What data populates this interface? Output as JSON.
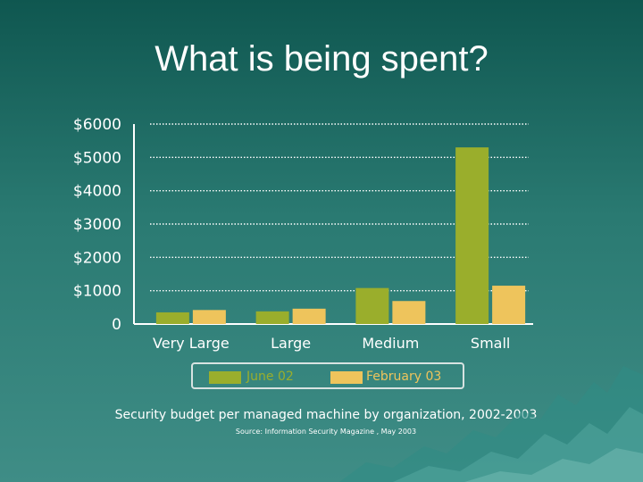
{
  "slide": {
    "title": "What is being spent?",
    "caption": "Security budget per managed machine by organization, 2002-2003",
    "source": "Source:  Information Security Magazine , May 2003"
  },
  "colors": {
    "background": "#1f6e66",
    "series_june": "#9aae2c",
    "series_feb": "#eec45c",
    "grid": "#ffffff",
    "text": "#ffffff"
  },
  "chart_data": {
    "type": "bar",
    "title": "What is being spent?",
    "categories": [
      "Very Large",
      "Large",
      "Medium",
      "Small"
    ],
    "series": [
      {
        "name": "June 02",
        "values": [
          350,
          380,
          1080,
          5300
        ]
      },
      {
        "name": "February 03",
        "values": [
          420,
          460,
          690,
          1150
        ]
      }
    ],
    "yticks": [
      "0",
      "$1000",
      "$2000",
      "$3000",
      "$4000",
      "$5000",
      "$6000"
    ],
    "ylim": [
      0,
      6000
    ],
    "grid": true,
    "legend": "bottom"
  }
}
